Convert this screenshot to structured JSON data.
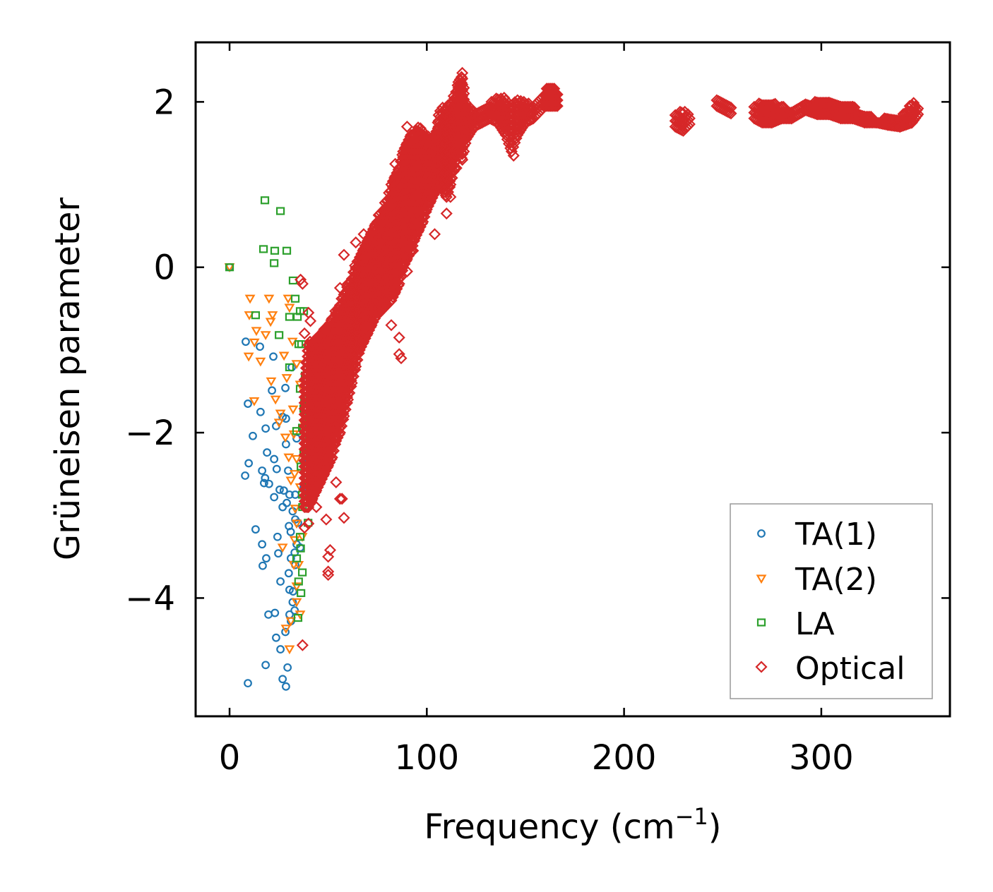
{
  "chart_data": {
    "type": "scatter",
    "title": "",
    "xlabel": "Frequency (cm",
    "xlabel_sup": "−1",
    "xlabel_close": ")",
    "ylabel": "Grüneisen parameter",
    "xlim": [
      -17.2,
      365.2
    ],
    "ylim": [
      -5.43,
      2.72
    ],
    "xticks": [
      0,
      100,
      200,
      300
    ],
    "xtick_labels": [
      "0",
      "100",
      "200",
      "300"
    ],
    "yticks": [
      2,
      0,
      -2,
      -4
    ],
    "ytick_labels": [
      "2",
      "0",
      "−2",
      "−4"
    ],
    "grid": false,
    "legend_position": "lower-right",
    "series": [
      {
        "name": "TA(1)",
        "marker": "circle",
        "color": "#1f77b4",
        "points": [
          [
            0,
            0
          ],
          [
            8.2,
            -0.9
          ],
          [
            9.3,
            -1.65
          ],
          [
            11.8,
            -2.04
          ],
          [
            9.7,
            -2.37
          ],
          [
            7.9,
            -2.52
          ],
          [
            15.4,
            -0.96
          ],
          [
            15.7,
            -1.75
          ],
          [
            18.3,
            -1.95
          ],
          [
            19,
            -2.24
          ],
          [
            16.5,
            -2.46
          ],
          [
            17.5,
            -2.61
          ],
          [
            13.2,
            -3.17
          ],
          [
            16.5,
            -3.35
          ],
          [
            18.6,
            -3.52
          ],
          [
            16.8,
            -3.61
          ],
          [
            19.7,
            -4.2
          ],
          [
            18.3,
            -4.81
          ],
          [
            9.3,
            -5.03
          ],
          [
            22.2,
            -1.08
          ],
          [
            21.5,
            -1.49
          ],
          [
            23.6,
            -1.92
          ],
          [
            22.6,
            -2.32
          ],
          [
            23.9,
            -2.44
          ],
          [
            25.4,
            -2.69
          ],
          [
            22.6,
            -2.78
          ],
          [
            26.9,
            -2.9
          ],
          [
            24.3,
            -3.26
          ],
          [
            24.7,
            -3.46
          ],
          [
            25.8,
            -3.8
          ],
          [
            23,
            -4.18
          ],
          [
            23.6,
            -4.48
          ],
          [
            25.8,
            -4.62
          ],
          [
            26.9,
            -4.98
          ],
          [
            28.6,
            -5.07
          ],
          [
            28.3,
            -1.46
          ],
          [
            28.6,
            -1.83
          ],
          [
            28.6,
            -2.14
          ],
          [
            29.7,
            -2.46
          ],
          [
            30.4,
            -2.75
          ],
          [
            30.1,
            -3.13
          ],
          [
            31.1,
            -3.52
          ],
          [
            30.4,
            -3.9
          ],
          [
            30.4,
            -4.2
          ],
          [
            29.4,
            -4.84
          ],
          [
            33.3,
            -2.75
          ],
          [
            33.3,
            -3.05
          ],
          [
            34,
            -3.35
          ],
          [
            33.3,
            -3.6
          ],
          [
            34.7,
            -3.09
          ],
          [
            35.8,
            -3.39
          ],
          [
            36.9,
            -2.32
          ],
          [
            37.6,
            -2.66
          ],
          [
            32.2,
            -3.92
          ],
          [
            31.1,
            -4.28
          ],
          [
            28.3,
            -4.41
          ],
          [
            34,
            -2.07
          ],
          [
            26.9,
            -1.81
          ],
          [
            31.5,
            -1.21
          ],
          [
            18,
            -2.55
          ],
          [
            20,
            -2.62
          ],
          [
            27.5,
            -2.7
          ],
          [
            29,
            -2.85
          ],
          [
            32,
            -2.95
          ],
          [
            31,
            -3.2
          ],
          [
            33,
            -3.45
          ],
          [
            30,
            -3.7
          ],
          [
            32,
            -4.05
          ],
          [
            33,
            -4.15
          ]
        ]
      },
      {
        "name": "TA(2)",
        "marker": "triangle-down",
        "color": "#ff7f0e",
        "points": [
          [
            0,
            0
          ],
          [
            10.4,
            -0.38
          ],
          [
            10,
            -0.58
          ],
          [
            20,
            -0.38
          ],
          [
            20.8,
            -0.66
          ],
          [
            21.8,
            -0.58
          ],
          [
            29.7,
            -0.38
          ],
          [
            30.4,
            -0.49
          ],
          [
            13.6,
            -0.77
          ],
          [
            12.6,
            -0.91
          ],
          [
            9.7,
            -1.08
          ],
          [
            18.3,
            -0.82
          ],
          [
            15.7,
            -1.14
          ],
          [
            21.1,
            -1.38
          ],
          [
            12.5,
            -1.62
          ],
          [
            23.3,
            -1.6
          ],
          [
            25.8,
            -1.77
          ],
          [
            31.9,
            -0.9
          ],
          [
            27.6,
            -1.07
          ],
          [
            29,
            -1.34
          ],
          [
            32.2,
            -1.72
          ],
          [
            28.3,
            -2.06
          ],
          [
            32.6,
            -2.02
          ],
          [
            34,
            -2.32
          ],
          [
            31.1,
            -2.58
          ],
          [
            35.8,
            -2.66
          ],
          [
            33.3,
            -2.92
          ],
          [
            26.9,
            -3.39
          ],
          [
            32.6,
            -3.6
          ],
          [
            35.8,
            -4.2
          ],
          [
            31.1,
            -4.28
          ],
          [
            30.4,
            -4.62
          ],
          [
            28.6,
            -4.37
          ],
          [
            34,
            -3.86
          ],
          [
            36.9,
            -3.26
          ],
          [
            37.6,
            -1.89
          ],
          [
            25.1,
            -1.88
          ],
          [
            35.8,
            -1.42
          ],
          [
            34,
            -1.17
          ],
          [
            30,
            -2.3
          ],
          [
            33,
            -2.5
          ],
          [
            34,
            -3.1
          ],
          [
            33,
            -3.3
          ],
          [
            35,
            -3.6
          ],
          [
            34,
            -4.05
          ]
        ]
      },
      {
        "name": "LA",
        "marker": "square",
        "color": "#2ca02c",
        "points": [
          [
            0,
            0
          ],
          [
            17.9,
            0.81
          ],
          [
            25.8,
            0.68
          ],
          [
            17.2,
            0.22
          ],
          [
            22.9,
            0.2
          ],
          [
            29,
            0.2
          ],
          [
            22.6,
            0.05
          ],
          [
            32.2,
            -0.16
          ],
          [
            33.3,
            -0.38
          ],
          [
            13.2,
            -0.58
          ],
          [
            30.4,
            -0.6
          ],
          [
            34.4,
            -0.6
          ],
          [
            35.8,
            -0.53
          ],
          [
            37.6,
            -0.53
          ],
          [
            25.1,
            -0.82
          ],
          [
            35.1,
            -0.93
          ],
          [
            36.5,
            -0.93
          ],
          [
            30.4,
            -1.21
          ],
          [
            38.3,
            -1.31
          ],
          [
            35.8,
            -1.47
          ],
          [
            41.2,
            -1.62
          ],
          [
            37.6,
            -1.71
          ],
          [
            40.5,
            -1.81
          ],
          [
            36.9,
            -1.94
          ],
          [
            40.5,
            -2.06
          ],
          [
            37.6,
            -2.24
          ],
          [
            36.2,
            -2.41
          ],
          [
            40.1,
            -2.62
          ],
          [
            36.9,
            -2.75
          ],
          [
            39.8,
            -3.09
          ],
          [
            35.8,
            -3.26
          ],
          [
            36.9,
            -3.69
          ],
          [
            36.2,
            -3.94
          ],
          [
            34.7,
            -4.24
          ],
          [
            34,
            -3.52
          ],
          [
            39.4,
            -2.36
          ],
          [
            34,
            -1.98
          ],
          [
            37,
            -2.9
          ],
          [
            36,
            -3.4
          ],
          [
            35,
            -3.8
          ],
          [
            38,
            -1.6
          ],
          [
            39,
            -2.5
          ]
        ]
      },
      {
        "name": "Optical",
        "marker": "diamond",
        "color": "#d62728",
        "points": [
          [
            36,
            -0.15
          ],
          [
            37,
            -0.2
          ],
          [
            40,
            -0.55
          ],
          [
            41,
            -0.65
          ],
          [
            38,
            -0.8
          ],
          [
            44,
            -2.9
          ],
          [
            38,
            -3.15
          ],
          [
            40,
            -3.1
          ],
          [
            49,
            -3.05
          ],
          [
            50,
            -3.5
          ],
          [
            51,
            -3.42
          ],
          [
            50,
            -3.68
          ],
          [
            50,
            -3.72
          ],
          [
            37,
            -4.57
          ],
          [
            54,
            -2.6
          ],
          [
            56,
            -2.8
          ],
          [
            57,
            -2.8
          ],
          [
            58,
            -3.03
          ],
          [
            56,
            -0.25
          ],
          [
            58,
            0.15
          ],
          [
            62,
            -0.4
          ],
          [
            64,
            0.3
          ],
          [
            75,
            0.55
          ],
          [
            82,
            -0.7
          ],
          [
            86,
            -0.85
          ],
          [
            86,
            -1.05
          ],
          [
            87,
            -1.1
          ],
          [
            90,
            -0.05
          ],
          [
            93,
            0.2
          ],
          [
            104,
            0.4
          ],
          [
            110,
            0.65
          ],
          [
            112,
            0.85
          ],
          [
            115,
            1.2
          ],
          [
            144,
            1.35
          ],
          [
            84,
            1.25
          ],
          [
            90,
            1.7
          ],
          [
            68,
            0.4
          ]
        ],
        "dense_bands": [
          [
            38,
            -2.9,
            -1.3
          ],
          [
            40,
            -2.9,
            -0.9
          ],
          [
            42,
            -2.8,
            -0.9
          ],
          [
            44,
            -2.7,
            -0.85
          ],
          [
            46,
            -2.6,
            -0.8
          ],
          [
            48,
            -2.5,
            -0.75
          ],
          [
            50,
            -2.4,
            -0.7
          ],
          [
            52,
            -2.3,
            -0.6
          ],
          [
            54,
            -2.1,
            -0.5
          ],
          [
            56,
            -2.0,
            -0.4
          ],
          [
            58,
            -1.8,
            -0.3
          ],
          [
            60,
            -1.6,
            -0.2
          ],
          [
            62,
            -1.4,
            -0.1
          ],
          [
            64,
            -1.2,
            0.05
          ],
          [
            66,
            -1.0,
            0.15
          ],
          [
            68,
            -0.9,
            0.25
          ],
          [
            70,
            -0.8,
            0.35
          ],
          [
            72,
            -0.7,
            0.45
          ],
          [
            74,
            -0.6,
            0.55
          ],
          [
            76,
            -0.55,
            0.65
          ],
          [
            78,
            -0.5,
            0.75
          ],
          [
            80,
            -0.45,
            0.85
          ],
          [
            82,
            -0.4,
            1.0
          ],
          [
            84,
            -0.3,
            1.1
          ],
          [
            86,
            -0.2,
            1.2
          ],
          [
            88,
            0.0,
            1.4
          ],
          [
            90,
            0.1,
            1.5
          ],
          [
            92,
            0.2,
            1.6
          ],
          [
            94,
            0.35,
            1.65
          ],
          [
            96,
            0.45,
            1.7
          ],
          [
            98,
            0.55,
            1.65
          ],
          [
            100,
            0.7,
            1.6
          ],
          [
            102,
            0.8,
            1.55
          ],
          [
            104,
            0.9,
            1.6
          ],
          [
            106,
            1.0,
            1.85
          ],
          [
            108,
            0.95,
            1.95
          ],
          [
            110,
            0.85,
            1.95
          ],
          [
            112,
            1.0,
            2.0
          ],
          [
            114,
            1.2,
            2.1
          ],
          [
            116,
            1.4,
            2.3
          ],
          [
            118,
            1.3,
            2.35
          ],
          [
            120,
            1.55,
            1.95
          ],
          [
            124,
            1.7,
            1.9
          ],
          [
            128,
            1.75,
            1.95
          ],
          [
            132,
            1.8,
            2.0
          ],
          [
            136,
            1.75,
            2.05
          ],
          [
            140,
            1.6,
            2.05
          ],
          [
            143,
            1.4,
            1.95
          ],
          [
            146,
            1.6,
            2.05
          ],
          [
            150,
            1.75,
            2.0
          ],
          [
            154,
            1.8,
            1.95
          ],
          [
            160,
            1.95,
            2.15
          ],
          [
            163,
            1.95,
            2.2
          ],
          [
            167,
            1.95,
            2.1
          ],
          [
            226,
            1.7,
            1.85
          ],
          [
            230,
            1.65,
            1.9
          ],
          [
            234,
            1.75,
            1.85
          ],
          [
            247,
            1.95,
            2.05
          ],
          [
            251,
            1.9,
            2.0
          ],
          [
            255,
            1.85,
            1.95
          ],
          [
            266,
            1.8,
            1.95
          ],
          [
            270,
            1.75,
            2.0
          ],
          [
            275,
            1.75,
            2.0
          ],
          [
            280,
            1.8,
            1.95
          ],
          [
            285,
            1.8,
            1.9
          ],
          [
            292,
            1.9,
            2.0
          ],
          [
            298,
            1.85,
            2.0
          ],
          [
            304,
            1.85,
            2.05
          ],
          [
            310,
            1.8,
            2.0
          ],
          [
            316,
            1.8,
            1.95
          ],
          [
            322,
            1.75,
            1.85
          ],
          [
            328,
            1.75,
            1.8
          ],
          [
            334,
            1.72,
            1.8
          ],
          [
            340,
            1.7,
            1.8
          ],
          [
            346,
            1.75,
            2.0
          ],
          [
            349,
            1.85,
            1.95
          ]
        ]
      }
    ]
  }
}
